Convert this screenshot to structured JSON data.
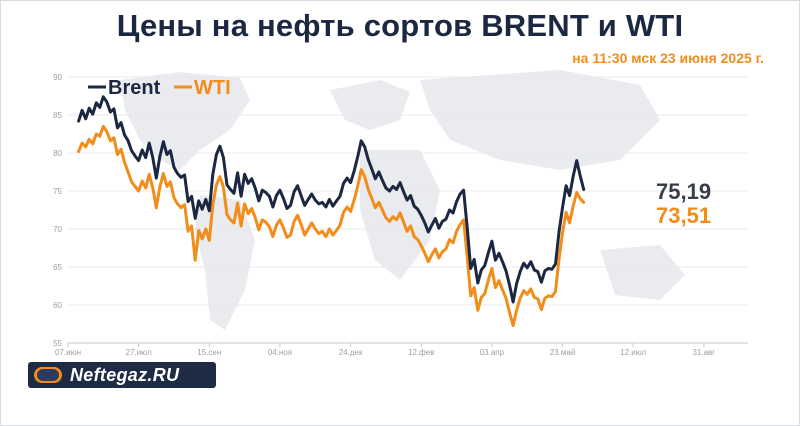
{
  "header": {
    "title": "Цены на нефть сортов BRENT и WTI",
    "subtitle": "на 11:30 мск 23 июня 2025 г."
  },
  "logo": {
    "text": "Neftegaz.RU"
  },
  "colors": {
    "brent": "#1c2841",
    "wti": "#f28c1a",
    "grid": "#e6e8ec",
    "axis_text": "#9aa0a8"
  },
  "chart_data": {
    "type": "line",
    "ylim": [
      55,
      90
    ],
    "yticks": [
      55,
      60,
      65,
      70,
      75,
      80,
      85,
      90
    ],
    "xlim": [
      0,
      385
    ],
    "xticks": [
      {
        "x": 0,
        "label": "07.июн"
      },
      {
        "x": 40,
        "label": "27.июл"
      },
      {
        "x": 80,
        "label": "15.сен"
      },
      {
        "x": 120,
        "label": "04.ноя"
      },
      {
        "x": 160,
        "label": "24.дек"
      },
      {
        "x": 200,
        "label": "12.фев"
      },
      {
        "x": 240,
        "label": "03.апр"
      },
      {
        "x": 280,
        "label": "23.май"
      },
      {
        "x": 320,
        "label": "12.июл"
      },
      {
        "x": 360,
        "label": "31.авг"
      }
    ],
    "legend_position": "top-left",
    "series": [
      {
        "name": "Brent",
        "color": "#1c2841",
        "last_label": "75,19",
        "points": [
          [
            6,
            84.2
          ],
          [
            8,
            85.6
          ],
          [
            10,
            84.5
          ],
          [
            12,
            85.9
          ],
          [
            14,
            85.1
          ],
          [
            16,
            86.6
          ],
          [
            18,
            86.0
          ],
          [
            20,
            87.4
          ],
          [
            22,
            86.7
          ],
          [
            24,
            85.4
          ],
          [
            26,
            85.8
          ],
          [
            28,
            83.3
          ],
          [
            30,
            84.0
          ],
          [
            32,
            82.4
          ],
          [
            34,
            81.6
          ],
          [
            36,
            80.3
          ],
          [
            38,
            79.6
          ],
          [
            40,
            79.0
          ],
          [
            42,
            80.4
          ],
          [
            44,
            79.4
          ],
          [
            46,
            81.3
          ],
          [
            48,
            79.4
          ],
          [
            50,
            76.7
          ],
          [
            52,
            79.5
          ],
          [
            54,
            81.5
          ],
          [
            56,
            79.8
          ],
          [
            58,
            80.3
          ],
          [
            60,
            78.1
          ],
          [
            62,
            77.3
          ],
          [
            64,
            76.8
          ],
          [
            66,
            77.1
          ],
          [
            68,
            73.6
          ],
          [
            70,
            74.3
          ],
          [
            72,
            71.4
          ],
          [
            74,
            73.7
          ],
          [
            76,
            72.6
          ],
          [
            78,
            73.9
          ],
          [
            80,
            72.4
          ],
          [
            82,
            77.2
          ],
          [
            84,
            79.8
          ],
          [
            86,
            80.9
          ],
          [
            88,
            79.4
          ],
          [
            90,
            75.8
          ],
          [
            92,
            75.2
          ],
          [
            94,
            74.7
          ],
          [
            96,
            77.4
          ],
          [
            98,
            74.3
          ],
          [
            100,
            77.2
          ],
          [
            102,
            76.0
          ],
          [
            104,
            76.6
          ],
          [
            106,
            75.4
          ],
          [
            108,
            73.7
          ],
          [
            110,
            75.1
          ],
          [
            112,
            74.8
          ],
          [
            114,
            74.3
          ],
          [
            116,
            72.9
          ],
          [
            118,
            74.4
          ],
          [
            120,
            75.1
          ],
          [
            122,
            74.0
          ],
          [
            124,
            72.7
          ],
          [
            126,
            73.1
          ],
          [
            128,
            74.9
          ],
          [
            130,
            75.7
          ],
          [
            132,
            74.4
          ],
          [
            134,
            73.1
          ],
          [
            136,
            73.9
          ],
          [
            138,
            74.6
          ],
          [
            140,
            73.8
          ],
          [
            142,
            73.3
          ],
          [
            144,
            73.5
          ],
          [
            146,
            72.9
          ],
          [
            148,
            73.9
          ],
          [
            150,
            73.0
          ],
          [
            152,
            73.7
          ],
          [
            154,
            74.3
          ],
          [
            156,
            76.0
          ],
          [
            158,
            76.7
          ],
          [
            160,
            76.1
          ],
          [
            162,
            77.6
          ],
          [
            164,
            79.5
          ],
          [
            166,
            81.6
          ],
          [
            168,
            80.8
          ],
          [
            170,
            79.1
          ],
          [
            172,
            77.9
          ],
          [
            174,
            76.6
          ],
          [
            176,
            77.5
          ],
          [
            178,
            76.4
          ],
          [
            180,
            75.4
          ],
          [
            182,
            75.0
          ],
          [
            184,
            75.6
          ],
          [
            186,
            75.2
          ],
          [
            188,
            76.1
          ],
          [
            190,
            74.9
          ],
          [
            192,
            73.8
          ],
          [
            194,
            74.4
          ],
          [
            196,
            73.0
          ],
          [
            198,
            72.6
          ],
          [
            200,
            71.8
          ],
          [
            202,
            70.8
          ],
          [
            204,
            69.6
          ],
          [
            206,
            70.5
          ],
          [
            208,
            71.4
          ],
          [
            210,
            70.1
          ],
          [
            212,
            71.0
          ],
          [
            214,
            71.3
          ],
          [
            216,
            72.5
          ],
          [
            218,
            72.1
          ],
          [
            220,
            73.6
          ],
          [
            222,
            74.6
          ],
          [
            224,
            75.1
          ],
          [
            226,
            70.2
          ],
          [
            228,
            64.8
          ],
          [
            230,
            66.0
          ],
          [
            232,
            62.9
          ],
          [
            234,
            64.6
          ],
          [
            236,
            65.2
          ],
          [
            238,
            66.9
          ],
          [
            240,
            68.4
          ],
          [
            242,
            65.9
          ],
          [
            244,
            66.8
          ],
          [
            246,
            65.7
          ],
          [
            248,
            64.5
          ],
          [
            250,
            62.6
          ],
          [
            252,
            60.4
          ],
          [
            254,
            62.8
          ],
          [
            256,
            64.4
          ],
          [
            258,
            65.5
          ],
          [
            260,
            64.9
          ],
          [
            262,
            65.7
          ],
          [
            264,
            64.6
          ],
          [
            266,
            64.4
          ],
          [
            268,
            63.0
          ],
          [
            270,
            64.5
          ],
          [
            272,
            64.8
          ],
          [
            274,
            64.7
          ],
          [
            276,
            65.4
          ],
          [
            278,
            69.6
          ],
          [
            280,
            72.8
          ],
          [
            282,
            75.7
          ],
          [
            284,
            74.4
          ],
          [
            286,
            76.9
          ],
          [
            288,
            79.0
          ],
          [
            290,
            77.0
          ],
          [
            292,
            75.2
          ]
        ]
      },
      {
        "name": "WTI",
        "color": "#f28c1a",
        "last_label": "73,51",
        "points": [
          [
            6,
            80.2
          ],
          [
            8,
            81.3
          ],
          [
            10,
            80.8
          ],
          [
            12,
            81.8
          ],
          [
            14,
            81.2
          ],
          [
            16,
            82.5
          ],
          [
            18,
            82.2
          ],
          [
            20,
            83.5
          ],
          [
            22,
            82.8
          ],
          [
            24,
            81.6
          ],
          [
            26,
            82.0
          ],
          [
            28,
            79.8
          ],
          [
            30,
            80.5
          ],
          [
            32,
            78.8
          ],
          [
            34,
            77.5
          ],
          [
            36,
            76.2
          ],
          [
            38,
            75.6
          ],
          [
            40,
            75.0
          ],
          [
            42,
            76.3
          ],
          [
            44,
            75.4
          ],
          [
            46,
            77.2
          ],
          [
            48,
            75.4
          ],
          [
            50,
            72.8
          ],
          [
            52,
            75.5
          ],
          [
            54,
            77.3
          ],
          [
            56,
            75.6
          ],
          [
            58,
            76.2
          ],
          [
            60,
            74.1
          ],
          [
            62,
            73.3
          ],
          [
            64,
            72.8
          ],
          [
            66,
            73.2
          ],
          [
            68,
            69.7
          ],
          [
            70,
            70.4
          ],
          [
            72,
            65.9
          ],
          [
            74,
            69.8
          ],
          [
            76,
            68.7
          ],
          [
            78,
            70.0
          ],
          [
            80,
            68.5
          ],
          [
            82,
            73.2
          ],
          [
            84,
            75.8
          ],
          [
            86,
            76.9
          ],
          [
            88,
            75.5
          ],
          [
            90,
            71.9
          ],
          [
            92,
            71.2
          ],
          [
            94,
            70.8
          ],
          [
            96,
            73.4
          ],
          [
            98,
            70.4
          ],
          [
            100,
            73.3
          ],
          [
            102,
            72.0
          ],
          [
            104,
            72.7
          ],
          [
            106,
            71.5
          ],
          [
            108,
            69.9
          ],
          [
            110,
            71.2
          ],
          [
            112,
            70.9
          ],
          [
            114,
            70.3
          ],
          [
            116,
            69.0
          ],
          [
            118,
            70.5
          ],
          [
            120,
            71.2
          ],
          [
            122,
            70.1
          ],
          [
            124,
            68.9
          ],
          [
            126,
            69.2
          ],
          [
            128,
            71.0
          ],
          [
            130,
            71.8
          ],
          [
            132,
            70.6
          ],
          [
            134,
            69.2
          ],
          [
            136,
            70.0
          ],
          [
            138,
            70.8
          ],
          [
            140,
            70.0
          ],
          [
            142,
            69.4
          ],
          [
            144,
            69.7
          ],
          [
            146,
            69.0
          ],
          [
            148,
            70.0
          ],
          [
            150,
            69.2
          ],
          [
            152,
            69.8
          ],
          [
            154,
            70.5
          ],
          [
            156,
            72.2
          ],
          [
            158,
            72.9
          ],
          [
            160,
            72.3
          ],
          [
            162,
            73.8
          ],
          [
            164,
            75.6
          ],
          [
            166,
            77.8
          ],
          [
            168,
            76.9
          ],
          [
            170,
            75.2
          ],
          [
            172,
            74.0
          ],
          [
            174,
            72.8
          ],
          [
            176,
            73.5
          ],
          [
            178,
            72.5
          ],
          [
            180,
            71.5
          ],
          [
            182,
            71.0
          ],
          [
            184,
            71.6
          ],
          [
            186,
            71.2
          ],
          [
            188,
            72.1
          ],
          [
            190,
            70.9
          ],
          [
            192,
            69.7
          ],
          [
            194,
            70.4
          ],
          [
            196,
            69.0
          ],
          [
            198,
            68.6
          ],
          [
            200,
            67.8
          ],
          [
            202,
            66.8
          ],
          [
            204,
            65.7
          ],
          [
            206,
            66.6
          ],
          [
            208,
            67.4
          ],
          [
            210,
            66.2
          ],
          [
            212,
            67.0
          ],
          [
            214,
            67.4
          ],
          [
            216,
            68.6
          ],
          [
            218,
            68.2
          ],
          [
            220,
            69.7
          ],
          [
            222,
            70.6
          ],
          [
            224,
            71.2
          ],
          [
            226,
            66.4
          ],
          [
            228,
            61.2
          ],
          [
            230,
            62.3
          ],
          [
            232,
            59.3
          ],
          [
            234,
            61.0
          ],
          [
            236,
            61.5
          ],
          [
            238,
            63.3
          ],
          [
            240,
            64.8
          ],
          [
            242,
            62.3
          ],
          [
            244,
            63.2
          ],
          [
            246,
            62.0
          ],
          [
            248,
            60.9
          ],
          [
            250,
            59.0
          ],
          [
            252,
            57.3
          ],
          [
            254,
            59.3
          ],
          [
            256,
            60.9
          ],
          [
            258,
            61.9
          ],
          [
            260,
            61.4
          ],
          [
            262,
            62.1
          ],
          [
            264,
            61.0
          ],
          [
            266,
            60.8
          ],
          [
            268,
            59.4
          ],
          [
            270,
            60.9
          ],
          [
            272,
            61.2
          ],
          [
            274,
            61.1
          ],
          [
            276,
            61.8
          ],
          [
            278,
            66.0
          ],
          [
            280,
            69.5
          ],
          [
            282,
            72.2
          ],
          [
            284,
            70.8
          ],
          [
            286,
            73.0
          ],
          [
            288,
            74.8
          ],
          [
            290,
            74.0
          ],
          [
            292,
            73.5
          ]
        ]
      }
    ]
  }
}
